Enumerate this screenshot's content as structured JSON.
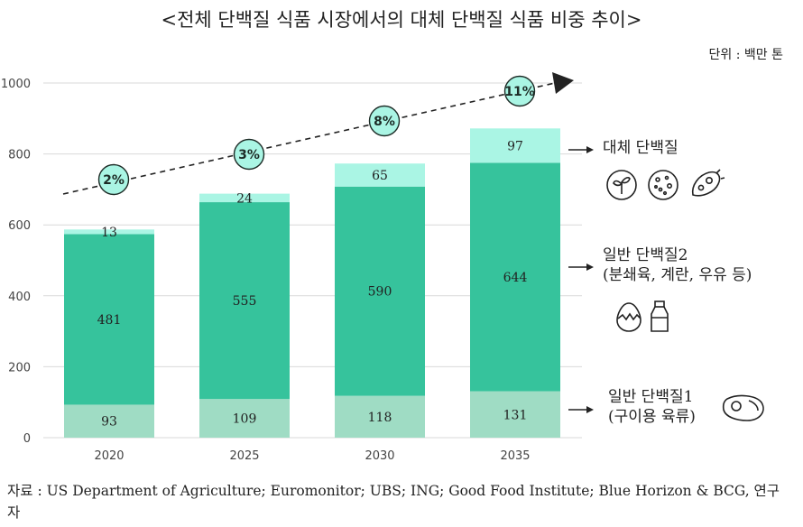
{
  "title": "<전체 단백질 식품 시장에서의 대체 단백질 식품 비중 추이>",
  "unit_label": "단위 : 백만 톤",
  "source_text": "자료 : US Department of Agriculture; Euromonitor; UBS; ING; Good Food Institute; Blue Horizon & BCG, 연구자",
  "categories_labels": [
    {
      "key": "alt",
      "lines": [
        "대체 단백질"
      ],
      "icons": [
        "sprout-icon",
        "cell-culture-icon",
        "microbe-icon"
      ]
    },
    {
      "key": "general2",
      "lines": [
        "일반 단백질2",
        "(분쇄육, 계란, 우유 등)"
      ],
      "icons": [
        "egg-icon",
        "milk-bottle-icon"
      ]
    },
    {
      "key": "general1",
      "lines": [
        "일반 단백질1",
        "(구이용 육류)"
      ],
      "icons": [
        "steak-icon"
      ]
    }
  ],
  "colors": {
    "general1": "#9fdcc4",
    "general2": "#36c39c",
    "alt": "#aaf5e4",
    "trend_arrow": "#222222"
  },
  "chart_data": {
    "type": "bar",
    "stacked": true,
    "categories": [
      "2020",
      "2025",
      "2030",
      "2035"
    ],
    "series": [
      {
        "key": "general1",
        "values": [
          93,
          109,
          118,
          131
        ]
      },
      {
        "key": "general2",
        "values": [
          481,
          555,
          590,
          644
        ]
      },
      {
        "key": "alt",
        "values": [
          13,
          24,
          65,
          97
        ]
      }
    ],
    "share_labels": [
      "2%",
      "3%",
      "8%",
      "11%"
    ],
    "yticks": [
      "0",
      "200",
      "400",
      "600",
      "800",
      "1000"
    ],
    "ylim": [
      0,
      1000
    ],
    "grid": true
  }
}
